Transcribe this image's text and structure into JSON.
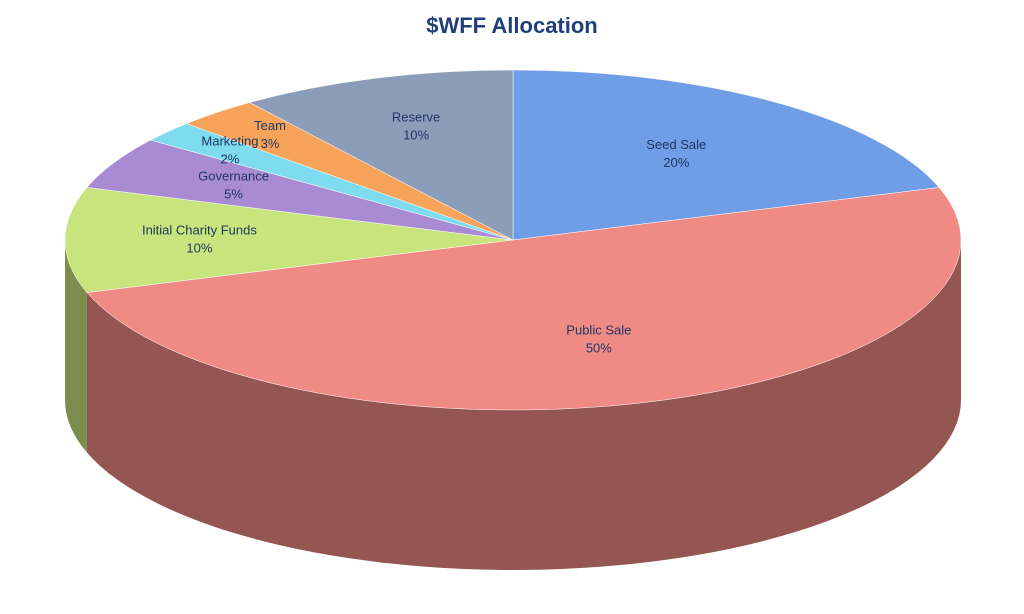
{
  "chart_data": {
    "type": "pie",
    "title": "$WFF Allocation",
    "categories": [
      "Seed Sale",
      "Public Sale",
      "Initial Charity Funds",
      "Governance",
      "Marketing",
      "Team",
      "Reserve"
    ],
    "values": [
      20,
      50,
      10,
      5,
      2,
      3,
      10
    ],
    "value_labels": [
      "20%",
      "50%",
      "10%",
      "5%",
      "2%",
      "3%",
      "10%"
    ],
    "colors": [
      "#6f9ee6",
      "#f08a85",
      "#c8e47c",
      "#a98bd4",
      "#7fdcf0",
      "#f7a45a",
      "#8c9dba"
    ]
  }
}
